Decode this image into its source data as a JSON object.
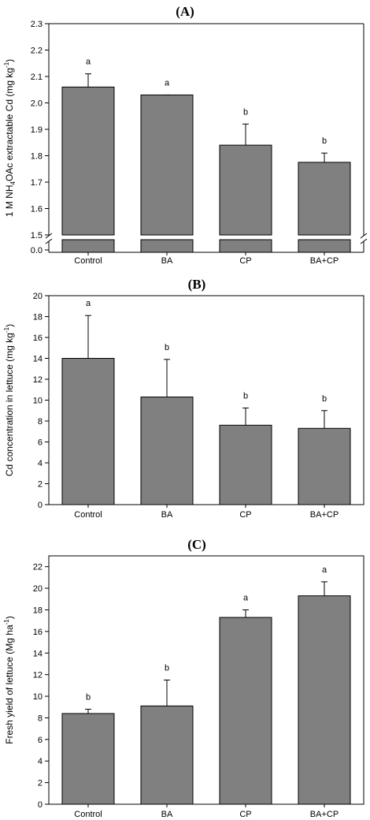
{
  "chart_data": [
    {
      "panel": "(A)",
      "type": "bar",
      "categories": [
        "Control",
        "BA",
        "CP",
        "BA+CP"
      ],
      "values": [
        2.06,
        2.03,
        1.84,
        1.775
      ],
      "errors": [
        0.05,
        0.0,
        0.08,
        0.035
      ],
      "letters": [
        "a",
        "a",
        "b",
        "b"
      ],
      "ylabel_parts": [
        "1 M NH",
        "4",
        "OAc extractable Cd (mg kg",
        "-1",
        ")"
      ],
      "ylim": [
        1.5,
        2.3
      ],
      "yticks": [
        "1.5",
        "1.6",
        "1.7",
        "1.8",
        "1.9",
        "2.0",
        "2.1",
        "2.2",
        "2.3"
      ],
      "axis_break": true,
      "below_break_tick": "0.0",
      "bar_color": "#808080"
    },
    {
      "panel": "(B)",
      "type": "bar",
      "categories": [
        "Control",
        "BA",
        "CP",
        "BA+CP"
      ],
      "values": [
        14.0,
        10.3,
        7.6,
        7.3
      ],
      "errors": [
        4.1,
        3.6,
        1.65,
        1.7
      ],
      "letters": [
        "a",
        "b",
        "b",
        "b"
      ],
      "ylabel_parts": [
        "Cd concentration in lettuce (mg kg",
        "-1",
        ")"
      ],
      "ylim": [
        0,
        20
      ],
      "yticks": [
        "0",
        "2",
        "4",
        "6",
        "8",
        "10",
        "12",
        "14",
        "16",
        "18",
        "20"
      ],
      "bar_color": "#808080"
    },
    {
      "panel": "(C)",
      "type": "bar",
      "categories": [
        "Control",
        "BA",
        "CP",
        "BA+CP"
      ],
      "values": [
        8.4,
        9.1,
        17.3,
        19.3
      ],
      "errors": [
        0.4,
        2.4,
        0.7,
        1.3
      ],
      "letters": [
        "b",
        "b",
        "a",
        "a"
      ],
      "ylabel_parts": [
        "Fresh yield of lettuce (Mg ha",
        "-1",
        ")"
      ],
      "ylim": [
        0,
        23
      ],
      "yticks": [
        "0",
        "2",
        "4",
        "6",
        "8",
        "10",
        "12",
        "14",
        "16",
        "18",
        "20",
        "22"
      ],
      "bar_color": "#808080"
    }
  ]
}
